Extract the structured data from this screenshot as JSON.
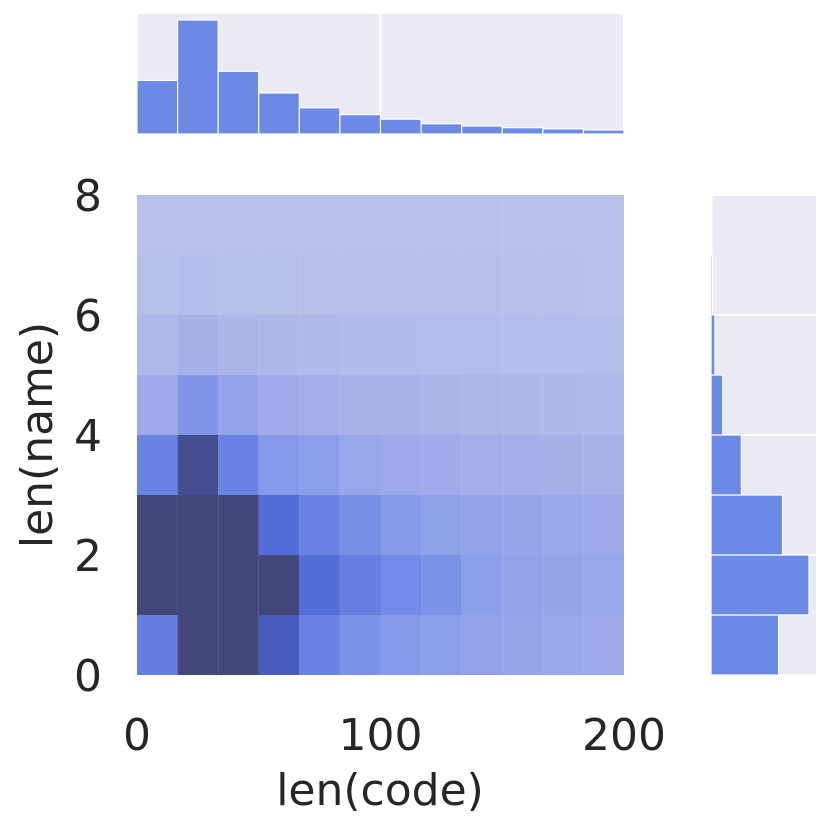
{
  "chart_data": {
    "type": "heatmap",
    "subtype": "joint-histogram",
    "xlabel": "len(code)",
    "ylabel": "len(name)",
    "xlim": [
      0,
      200
    ],
    "ylim": [
      0,
      8
    ],
    "xticks": [
      "0",
      "100",
      "200"
    ],
    "yticks": [
      "0",
      "2",
      "4",
      "6",
      "8"
    ],
    "x_bin_width": 16.67,
    "y_bin_width": 1,
    "colormap": "light-to-dark blue",
    "bar_color": "#6b8ae6",
    "grid": true,
    "marginal_x": {
      "bins": [
        0,
        16.67,
        33.33,
        50,
        66.67,
        83.33,
        100,
        116.67,
        133.33,
        150,
        166.67,
        183.33,
        200
      ],
      "heights": [
        0.47,
        1.0,
        0.55,
        0.36,
        0.23,
        0.17,
        0.13,
        0.09,
        0.07,
        0.055,
        0.045,
        0.035
      ]
    },
    "marginal_y": {
      "bins": [
        0,
        1,
        2,
        3,
        4,
        5,
        6,
        7,
        8
      ],
      "widths": [
        0.69,
        1.0,
        0.73,
        0.31,
        0.12,
        0.04,
        0.015,
        0.005
      ]
    },
    "density": [
      [
        0.6,
        1.0,
        1.0,
        0.85,
        0.55,
        0.42,
        0.36,
        0.32,
        0.28,
        0.26,
        0.24,
        0.22
      ],
      [
        1.0,
        1.0,
        1.0,
        1.0,
        0.72,
        0.58,
        0.48,
        0.42,
        0.32,
        0.28,
        0.27,
        0.25
      ],
      [
        1.0,
        1.0,
        1.0,
        0.72,
        0.55,
        0.45,
        0.36,
        0.3,
        0.28,
        0.26,
        0.24,
        0.22
      ],
      [
        0.55,
        0.95,
        0.55,
        0.36,
        0.32,
        0.25,
        0.22,
        0.2,
        0.18,
        0.17,
        0.16,
        0.15
      ],
      [
        0.22,
        0.4,
        0.28,
        0.2,
        0.18,
        0.15,
        0.14,
        0.13,
        0.12,
        0.11,
        0.11,
        0.1
      ],
      [
        0.1,
        0.16,
        0.13,
        0.11,
        0.09,
        0.08,
        0.08,
        0.07,
        0.07,
        0.06,
        0.06,
        0.06
      ],
      [
        0.05,
        0.06,
        0.05,
        0.05,
        0.04,
        0.04,
        0.04,
        0.04,
        0.04,
        0.04,
        0.04,
        0.03
      ],
      [
        0.03,
        0.03,
        0.03,
        0.03,
        0.03,
        0.03,
        0.03,
        0.03,
        0.03,
        0.03,
        0.03,
        0.03
      ]
    ]
  }
}
